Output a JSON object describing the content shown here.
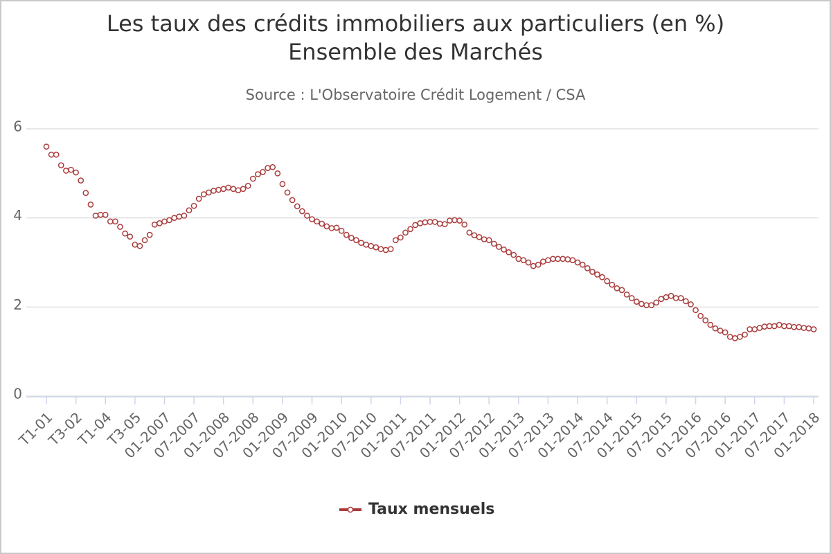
{
  "chart_data": {
    "type": "line",
    "title": [
      "Les taux des crédits immobiliers aux particuliers (en %)",
      "Ensemble des Marchés"
    ],
    "subtitle": "Source : L'Observatoire Crédit Logement / CSA",
    "categories": [
      "T1-01",
      null,
      null,
      null,
      null,
      null,
      "T3-02",
      null,
      null,
      null,
      null,
      null,
      "T1-04",
      null,
      null,
      null,
      null,
      null,
      "T3-05",
      null,
      null,
      null,
      null,
      null,
      "01-2007",
      null,
      null,
      null,
      null,
      null,
      "07-2007",
      null,
      null,
      null,
      null,
      null,
      "01-2008",
      null,
      null,
      null,
      null,
      null,
      "07-2008",
      null,
      null,
      null,
      null,
      null,
      "01-2009",
      null,
      null,
      null,
      null,
      null,
      "07-2009",
      null,
      null,
      null,
      null,
      null,
      "01-2010",
      null,
      null,
      null,
      null,
      null,
      "07-2010",
      null,
      null,
      null,
      null,
      null,
      "01-2011",
      null,
      null,
      null,
      null,
      null,
      "07-2011",
      null,
      null,
      null,
      null,
      null,
      "01-2012",
      null,
      null,
      null,
      null,
      null,
      "07-2012",
      null,
      null,
      null,
      null,
      null,
      "01-2013",
      null,
      null,
      null,
      null,
      null,
      "07-2013",
      null,
      null,
      null,
      null,
      null,
      "01-2014",
      null,
      null,
      null,
      null,
      null,
      "07-2014",
      null,
      null,
      null,
      null,
      null,
      "01-2015",
      null,
      null,
      null,
      null,
      null,
      "07-2015",
      null,
      null,
      null,
      null,
      null,
      "01-2016",
      null,
      null,
      null,
      null,
      null,
      "07-2016",
      null,
      null,
      null,
      null,
      null,
      "01-2017",
      null,
      null,
      null,
      null,
      null,
      "07-2017",
      null,
      null,
      null,
      null,
      null,
      "01-2018"
    ],
    "series": [
      {
        "name": "Taux mensuels",
        "color": "#aa3c3c",
        "values": [
          5.6,
          5.42,
          5.42,
          5.18,
          5.06,
          5.08,
          5.02,
          4.84,
          4.56,
          4.3,
          4.05,
          4.07,
          4.07,
          3.92,
          3.92,
          3.8,
          3.65,
          3.58,
          3.4,
          3.37,
          3.5,
          3.62,
          3.85,
          3.88,
          3.92,
          3.95,
          4.0,
          4.03,
          4.05,
          4.17,
          4.27,
          4.43,
          4.53,
          4.57,
          4.61,
          4.63,
          4.65,
          4.68,
          4.65,
          4.62,
          4.65,
          4.72,
          4.88,
          4.98,
          5.03,
          5.12,
          5.14,
          5.0,
          4.76,
          4.57,
          4.4,
          4.26,
          4.15,
          4.05,
          3.97,
          3.92,
          3.87,
          3.81,
          3.77,
          3.78,
          3.71,
          3.62,
          3.55,
          3.5,
          3.44,
          3.4,
          3.37,
          3.34,
          3.3,
          3.28,
          3.3,
          3.5,
          3.56,
          3.67,
          3.75,
          3.84,
          3.88,
          3.9,
          3.91,
          3.91,
          3.87,
          3.86,
          3.94,
          3.95,
          3.94,
          3.85,
          3.67,
          3.61,
          3.57,
          3.52,
          3.5,
          3.42,
          3.35,
          3.29,
          3.23,
          3.17,
          3.08,
          3.05,
          3.0,
          2.92,
          2.95,
          3.02,
          3.05,
          3.08,
          3.08,
          3.08,
          3.07,
          3.05,
          3.0,
          2.95,
          2.87,
          2.79,
          2.73,
          2.67,
          2.58,
          2.5,
          2.42,
          2.38,
          2.28,
          2.2,
          2.12,
          2.07,
          2.04,
          2.04,
          2.1,
          2.18,
          2.22,
          2.25,
          2.2,
          2.2,
          2.13,
          2.06,
          1.93,
          1.8,
          1.7,
          1.6,
          1.52,
          1.47,
          1.43,
          1.33,
          1.3,
          1.33,
          1.38,
          1.5,
          1.5,
          1.53,
          1.56,
          1.57,
          1.57,
          1.6,
          1.57,
          1.57,
          1.55,
          1.55,
          1.53,
          1.52,
          1.5
        ]
      }
    ],
    "ylim": [
      0,
      6
    ],
    "yticks": [
      0,
      2,
      4,
      6
    ],
    "grid": true,
    "legend": "bottom"
  }
}
